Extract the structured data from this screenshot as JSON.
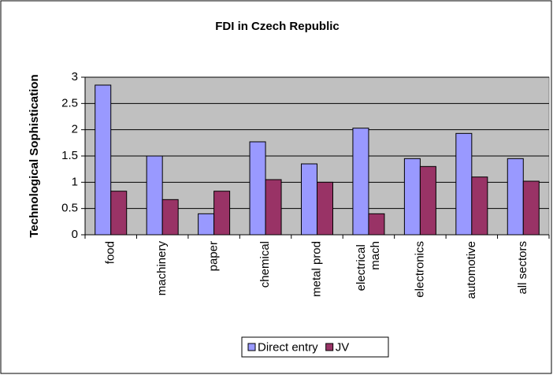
{
  "chart_data": {
    "type": "bar",
    "title": "FDI in Czech Republic",
    "y_label": "Technological Sophistication",
    "categories": [
      "food",
      "machinery",
      "paper",
      "chemical",
      "metal prod",
      "electrical mach",
      "electronics",
      "automotive",
      "all sectors"
    ],
    "series": [
      {
        "name": "Direct entry",
        "color": "#9999ff",
        "values": [
          2.85,
          1.5,
          0.4,
          1.77,
          1.35,
          2.03,
          1.45,
          1.93,
          1.45
        ]
      },
      {
        "name": "JV",
        "color": "#993366",
        "values": [
          0.83,
          0.67,
          0.83,
          1.05,
          1.0,
          0.4,
          1.3,
          1.1,
          1.02
        ]
      }
    ],
    "ylim": [
      0,
      3
    ],
    "yticks": [
      0,
      0.5,
      1,
      1.5,
      2,
      2.5,
      3
    ],
    "grid": true,
    "plot_background": "#c0c0c0",
    "legend": "bottom"
  }
}
